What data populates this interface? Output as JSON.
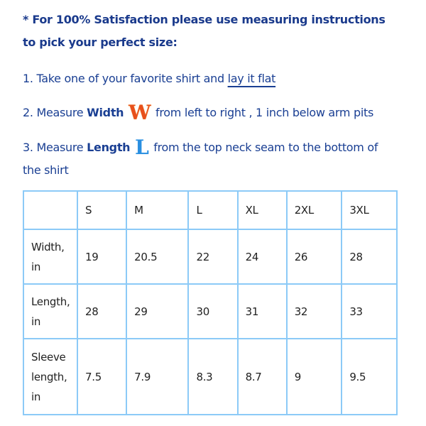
{
  "heading": {
    "line1": "* For 100% Satisfaction please use measuring instructions",
    "line2": "to pick your perfect size:"
  },
  "steps": [
    {
      "prefix": "1. Take one of your favorite shirt and ",
      "link": "lay it flat"
    },
    {
      "prefix": "2. Measure ",
      "bold": "Width",
      "icon": "W",
      "suffix": " from left to right , 1 inch below arm pits"
    },
    {
      "prefix": "3. Measure ",
      "bold": "Length",
      "icon": "L",
      "suffix": " from the top neck seam to the bottom of",
      "cont": "the shirt"
    }
  ],
  "table": {
    "headers": [
      "",
      "S",
      "M",
      "L",
      "XL",
      "2XL",
      "3XL"
    ],
    "rows": [
      {
        "label": [
          "Width,",
          "in"
        ],
        "values": [
          "19",
          "20.5",
          "22",
          "24",
          "26",
          "28"
        ]
      },
      {
        "label": [
          "Length,",
          "in"
        ],
        "values": [
          "28",
          "29",
          "30",
          "31",
          "32",
          "33"
        ]
      },
      {
        "label": [
          "Sleeve",
          "length,",
          "in"
        ],
        "values": [
          "7.5",
          "7.9",
          "8.3",
          "8.7",
          "9",
          "9.5"
        ]
      }
    ]
  },
  "colors": {
    "text": "#1a3f93",
    "border": "#8ccaf7",
    "width_icon": "#e8501c",
    "length_icon": "#2a8fe0"
  }
}
